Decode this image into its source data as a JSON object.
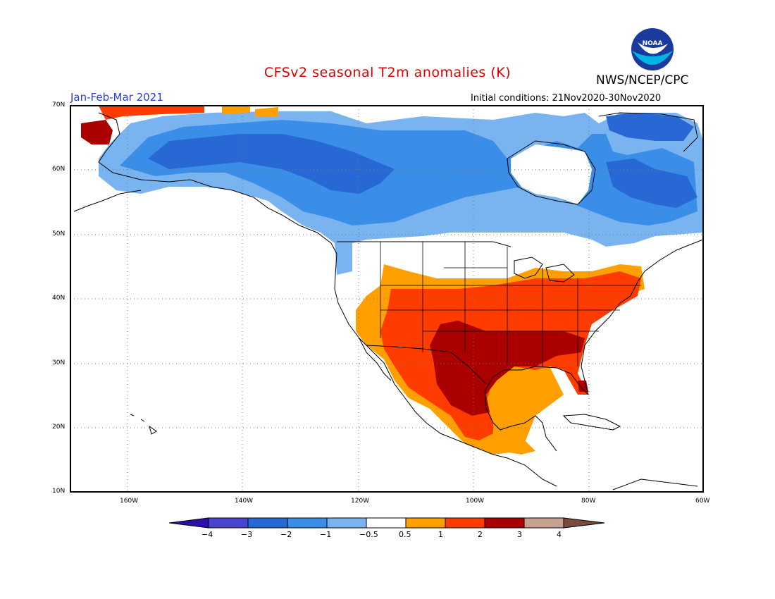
{
  "title": "CFSv2 seasonal T2m anomalies (K)",
  "agency": "NWS/NCEP/CPC",
  "logo_text": "NOAA",
  "season": "Jan-Feb-Mar 2021",
  "initial_conditions": "Initial conditions: 21Nov2020-30Nov2020",
  "lat_labels": [
    "70N",
    "60N",
    "50N",
    "40N",
    "30N",
    "20N",
    "10N"
  ],
  "lon_labels": [
    "160W",
    "140W",
    "120W",
    "100W",
    "80W",
    "60W"
  ],
  "colorbar": {
    "labels": [
      "−4",
      "−3",
      "−2",
      "−1",
      "−0.5",
      "0.5",
      "1",
      "2",
      "3",
      "4"
    ],
    "colors": [
      "#2b0fa8",
      "#4a44d0",
      "#2868d4",
      "#3a8ee8",
      "#7ab4f0",
      "#ffffff",
      "#ffa000",
      "#ff3c00",
      "#aa0000",
      "#c8a090",
      "#7a4a3a"
    ]
  },
  "colors": {
    "coast": "#000000",
    "grid": "#777777",
    "map_bg": "#ffffff"
  }
}
